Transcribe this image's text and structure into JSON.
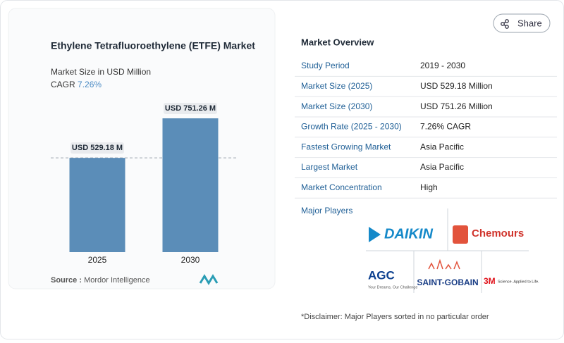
{
  "chart_data": {
    "type": "bar",
    "title": "Ethylene Tetrafluoroethylene (ETFE) Market",
    "subtitle": "Market Size in USD Million",
    "cagr_label": "CAGR",
    "cagr": "7.26%",
    "categories": [
      "2025",
      "2030"
    ],
    "values": [
      529.18,
      751.26
    ],
    "value_labels": [
      "USD 529.18 M",
      "USD 751.26 M"
    ],
    "color": "#5b8db8",
    "source_label": "Source :",
    "source": "Mordor Intelligence"
  },
  "share": "Share",
  "overview": {
    "title": "Market Overview",
    "rows": [
      [
        "Study Period",
        "2019 - 2030"
      ],
      [
        "Market Size (2025)",
        "USD 529.18 Million"
      ],
      [
        "Market Size (2030)",
        "USD 751.26 Million"
      ],
      [
        "Growth Rate (2025 - 2030)",
        "7.26% CAGR"
      ],
      [
        "Fastest Growing Market",
        "Asia Pacific"
      ],
      [
        "Largest Market",
        "Asia Pacific"
      ],
      [
        "Market Concentration",
        "High"
      ]
    ],
    "major_players": "Major Players",
    "players": [
      "DAIKIN",
      "Chemours",
      "AGC",
      "Your Dreams, Our Challenge",
      "SAINT-GOBAIN",
      "3M",
      "Science. Applied to Life."
    ],
    "disclaimer": "*Disclaimer: Major Players sorted in no particular order"
  }
}
